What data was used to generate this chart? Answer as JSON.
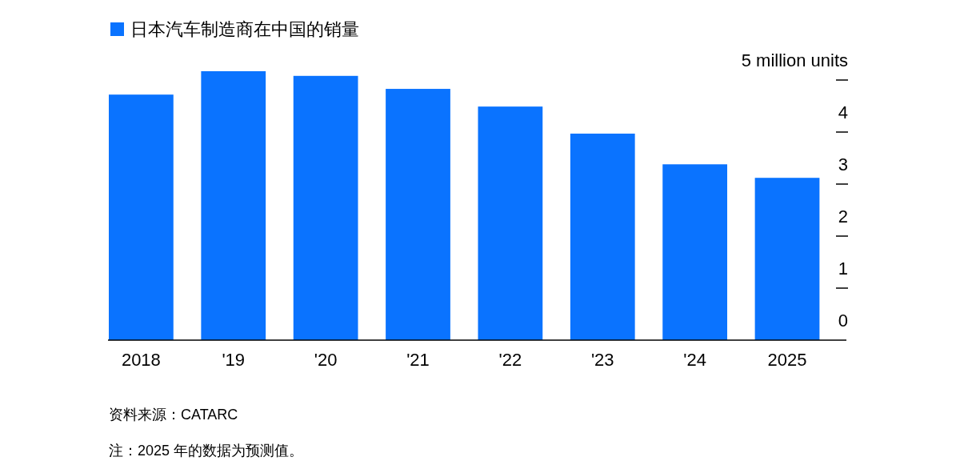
{
  "chart_data": {
    "type": "bar",
    "categories": [
      "2018",
      "'19",
      "'20",
      "'21",
      "'22",
      "'23",
      "'24",
      "2025"
    ],
    "series": [
      {
        "name": "日本汽车制造商在中国的销量",
        "color": "#0a73ff",
        "values": [
          4.72,
          5.17,
          5.08,
          4.83,
          4.49,
          3.97,
          3.38,
          3.12
        ]
      }
    ],
    "ylim": [
      0,
      5.2
    ],
    "yticks": [
      0,
      1,
      2,
      3,
      4,
      {
        "value": 5,
        "label": "5 million units"
      }
    ],
    "legend": "top left",
    "annotations": [
      "资料来源：CATARC",
      "注：2025 年的数据为预测值。"
    ]
  }
}
